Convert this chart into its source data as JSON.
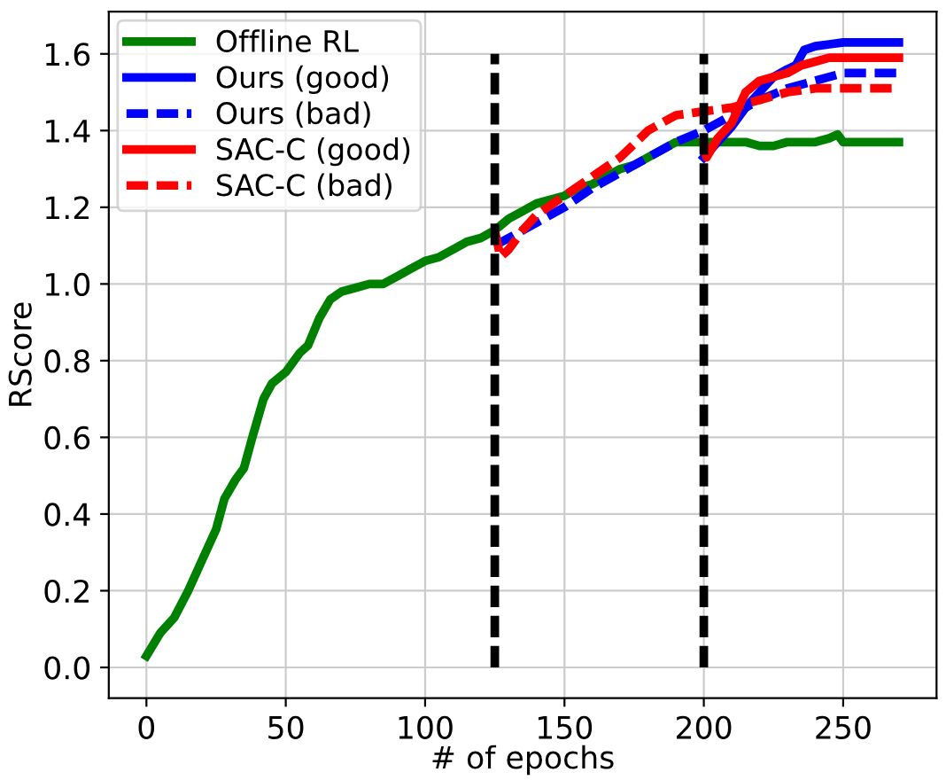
{
  "chart_data": {
    "type": "line",
    "xlabel": "# of epochs",
    "ylabel": "RScore",
    "xlim": [
      -13.5,
      283.5
    ],
    "ylim": [
      -0.08,
      1.71
    ],
    "xticks": [
      0,
      50,
      100,
      150,
      200,
      250
    ],
    "yticks": [
      {
        "value": 0,
        "label": "0.0"
      },
      0.2,
      0.4,
      0.6,
      0.8,
      {
        "value": 1,
        "label": "1.0"
      },
      1.2,
      1.4,
      1.6
    ],
    "grid": true,
    "legend": "top left",
    "line_style": "solid",
    "marker": "none",
    "ref_lines": [
      {
        "axis": "x",
        "value": 125,
        "color": "#000000",
        "line_style": "dashed"
      },
      {
        "axis": "x",
        "value": 200,
        "color": "#000000",
        "line_style": "dashed"
      }
    ],
    "series": [
      {
        "name": "Offline RL",
        "color": "#008000",
        "x": [
          0,
          5,
          10,
          15,
          20,
          25,
          28,
          32,
          35,
          38,
          42,
          45,
          50,
          55,
          58,
          62,
          66,
          70,
          75,
          80,
          85,
          90,
          95,
          100,
          105,
          110,
          115,
          120,
          125,
          130,
          135,
          140,
          145,
          150,
          155,
          160,
          165,
          170,
          175,
          180,
          185,
          190,
          195,
          200,
          205,
          210,
          215,
          220,
          225,
          230,
          235,
          240,
          245,
          248,
          250,
          260,
          270
        ],
        "values": [
          0.03,
          0.09,
          0.13,
          0.2,
          0.28,
          0.36,
          0.44,
          0.49,
          0.52,
          0.6,
          0.7,
          0.74,
          0.77,
          0.82,
          0.84,
          0.91,
          0.96,
          0.98,
          0.99,
          1.0,
          1.0,
          1.02,
          1.04,
          1.06,
          1.07,
          1.09,
          1.11,
          1.12,
          1.14,
          1.17,
          1.19,
          1.21,
          1.22,
          1.23,
          1.25,
          1.26,
          1.28,
          1.3,
          1.31,
          1.33,
          1.35,
          1.37,
          1.37,
          1.37,
          1.37,
          1.37,
          1.37,
          1.36,
          1.36,
          1.37,
          1.37,
          1.37,
          1.38,
          1.39,
          1.37,
          1.37,
          1.37
        ]
      },
      {
        "name": "Ours (good)",
        "color": "#0000ff",
        "x": [
          200,
          205,
          210,
          215,
          220,
          225,
          230,
          233,
          236,
          240,
          245,
          250,
          270
        ],
        "values": [
          1.33,
          1.37,
          1.41,
          1.46,
          1.5,
          1.54,
          1.56,
          1.57,
          1.61,
          1.62,
          1.625,
          1.63,
          1.63
        ]
      },
      {
        "name": "Ours (bad)",
        "color": "#0000ff",
        "line_style": "dashed",
        "x": [
          125,
          130,
          140,
          150,
          160,
          170,
          180,
          190,
          200,
          210,
          220,
          230,
          240,
          250,
          270
        ],
        "values": [
          1.1,
          1.12,
          1.16,
          1.2,
          1.25,
          1.29,
          1.33,
          1.37,
          1.4,
          1.44,
          1.48,
          1.51,
          1.53,
          1.55,
          1.55
        ]
      },
      {
        "name": "SAC-C (good)",
        "color": "#ff0000",
        "x": [
          200,
          201,
          205,
          210,
          215,
          220,
          230,
          235,
          240,
          245,
          270
        ],
        "values": [
          1.37,
          1.33,
          1.38,
          1.42,
          1.5,
          1.53,
          1.55,
          1.57,
          1.58,
          1.59,
          1.59
        ]
      },
      {
        "name": "SAC-C (bad)",
        "color": "#ff0000",
        "line_style": "dashed",
        "x": [
          125,
          127,
          130,
          135,
          140,
          150,
          160,
          170,
          180,
          190,
          200,
          210,
          220,
          230,
          240,
          250,
          270
        ],
        "values": [
          1.14,
          1.07,
          1.09,
          1.14,
          1.18,
          1.23,
          1.28,
          1.33,
          1.4,
          1.44,
          1.45,
          1.46,
          1.48,
          1.5,
          1.51,
          1.51,
          1.51
        ]
      }
    ]
  }
}
